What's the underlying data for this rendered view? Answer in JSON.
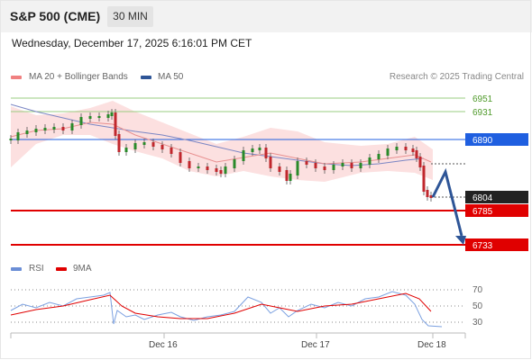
{
  "header": {
    "title": "S&P 500 (CME)",
    "timeframe": "30 MIN"
  },
  "datetime": "Wednesday, December 17, 2025 6:16:01 PM CET",
  "legend": {
    "items": [
      {
        "label": "MA 20 + Bollinger Bands",
        "color": "#f08080"
      },
      {
        "label": "MA 50",
        "color": "#2e5597"
      }
    ],
    "credit": "Research © 2025 Trading Central"
  },
  "levels": [
    {
      "value": "6951",
      "style": "green"
    },
    {
      "value": "6931",
      "style": "green"
    },
    {
      "value": "6890",
      "style": "blue"
    },
    {
      "value": "6804",
      "style": "dark"
    },
    {
      "value": "6785",
      "style": "red"
    },
    {
      "value": "6733",
      "style": "red"
    }
  ],
  "rsi_legend": {
    "items": [
      {
        "label": "RSI",
        "color": "#6b8ed6"
      },
      {
        "label": "9MA",
        "color": "#e00000"
      }
    ]
  },
  "rsi_axis": [
    "70",
    "50",
    "30"
  ],
  "x_axis": [
    "Dec 16",
    "Dec 17",
    "Dec 18"
  ],
  "colors": {
    "up": "#2a8a2a",
    "down": "#c0272d",
    "ma50": "#6677bb",
    "ma20": "#e8908f",
    "band": "#fbdada",
    "resistance_green": "#7cbd5c",
    "pivot_blue": "#1f5fe0",
    "support_red": "#e00000",
    "arrow": "#2e5597"
  }
}
